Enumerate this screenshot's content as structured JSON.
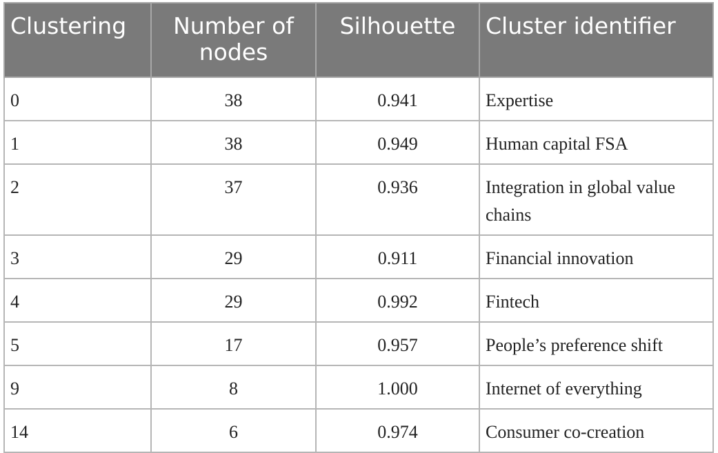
{
  "table": {
    "headers": [
      "Clustering",
      "Number of nodes",
      "Silhouette",
      "Cluster identifier"
    ],
    "rows": [
      [
        "0",
        "38",
        "0.941",
        "Expertise"
      ],
      [
        "1",
        "38",
        "0.949",
        "Human capital FSA"
      ],
      [
        "2",
        "37",
        "0.936",
        "Integration in global value chains"
      ],
      [
        "3",
        "29",
        "0.911",
        "Financial innovation"
      ],
      [
        "4",
        "29",
        "0.992",
        "Fintech"
      ],
      [
        "5",
        "17",
        "0.957",
        "People’s preference shift"
      ],
      [
        "9",
        "8",
        "1.000",
        "Internet of everything"
      ],
      [
        "14",
        "6",
        "0.974",
        "Consumer co-creation"
      ]
    ]
  }
}
